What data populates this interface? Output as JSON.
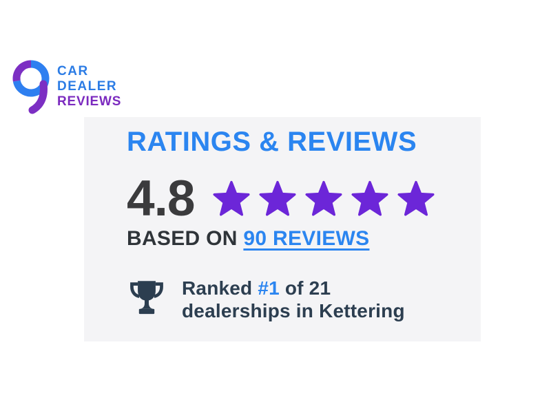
{
  "logo": {
    "lines": {
      "car": "CAR",
      "dealer": "DEALER",
      "reviews": "REVIEWS"
    },
    "colors": {
      "blue": "#2C7CE5",
      "purple": "#7B2ABF",
      "icon_blue": "#2E7FF0",
      "icon_purple": "#7C2FC3"
    }
  },
  "ratings_card": {
    "heading": "RATINGS & REVIEWS",
    "rating_value": "4.8",
    "stars": {
      "count": 5,
      "filled": 5,
      "max": 5
    },
    "based_on": {
      "text": "BASED ON",
      "link_text": "90 REVIEWS"
    },
    "ranked": {
      "prefix": "Ranked",
      "rank": "#1",
      "suffix": "of 21",
      "line2": "dealerships in Kettering"
    },
    "colors": {
      "accent_blue": "#2B85F0",
      "dark_text": "#3B3B3D",
      "based_text": "#2F3439",
      "slate": "#2C3E50",
      "background": "#F4F4F6",
      "star_purple": "#6C26D8"
    }
  }
}
